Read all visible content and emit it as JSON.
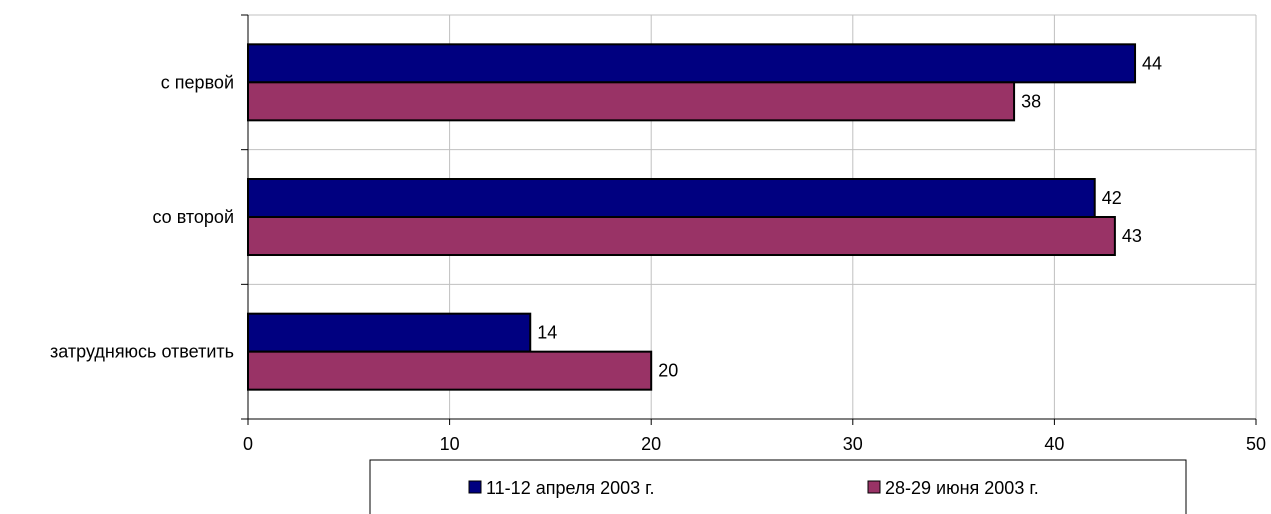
{
  "chart_data": {
    "type": "bar",
    "orientation": "horizontal",
    "categories": [
      "с первой",
      "со второй",
      "затрудняюсь ответить"
    ],
    "series": [
      {
        "name": "11-12 апреля 2003 г.",
        "values": [
          44,
          42,
          14
        ],
        "color": "#000080"
      },
      {
        "name": "28-29 июня 2003 г.",
        "values": [
          38,
          43,
          20
        ],
        "color": "#993366"
      }
    ],
    "xlim": [
      0,
      50
    ],
    "xticks": [
      "0",
      "10",
      "20",
      "30",
      "40",
      "50"
    ],
    "grid": true,
    "legend_position": "bottom"
  }
}
